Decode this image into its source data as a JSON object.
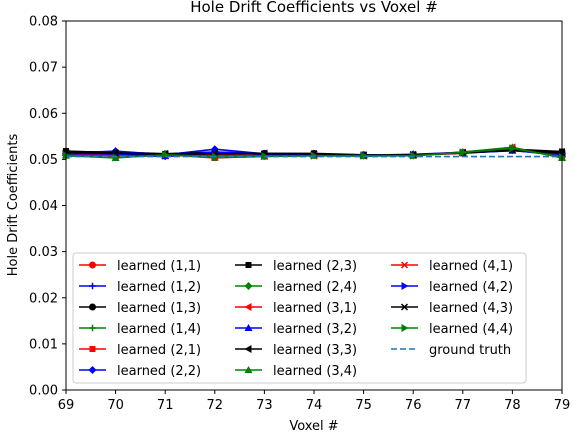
{
  "chart_data": {
    "type": "line",
    "title": "Hole Drift Coefficients vs Voxel #",
    "xlabel": "Voxel #",
    "ylabel": "Hole Drift Coefficients",
    "xlim": [
      69,
      79
    ],
    "ylim": [
      0.0,
      0.08
    ],
    "x_ticks": [
      "69",
      "70",
      "71",
      "72",
      "73",
      "74",
      "75",
      "76",
      "77",
      "78",
      "79"
    ],
    "y_ticks": [
      "0.00",
      "0.01",
      "0.02",
      "0.03",
      "0.04",
      "0.05",
      "0.06",
      "0.07",
      "0.08"
    ],
    "grid": false,
    "legend_position": "lower left",
    "legend_columns": 3,
    "x": [
      69,
      70,
      71,
      72,
      73,
      74,
      75,
      76,
      77,
      78,
      79
    ],
    "series": [
      {
        "name": "learned (1,1)",
        "color": "#ff0000",
        "marker": "circle",
        "line": "solid",
        "values": [
          0.051,
          0.0507,
          0.0508,
          0.0509,
          0.0508,
          0.0509,
          0.0508,
          0.0509,
          0.0513,
          0.052,
          0.0508
        ]
      },
      {
        "name": "learned (1,2)",
        "color": "#0000ff",
        "marker": "plus",
        "line": "solid",
        "values": [
          0.0512,
          0.0511,
          0.0506,
          0.0513,
          0.0512,
          0.051,
          0.0509,
          0.051,
          0.0514,
          0.0519,
          0.051
        ]
      },
      {
        "name": "learned (1,3)",
        "color": "#000000",
        "marker": "circle",
        "line": "solid",
        "values": [
          0.0517,
          0.0516,
          0.0512,
          0.0516,
          0.0513,
          0.0513,
          0.051,
          0.051,
          0.0514,
          0.0521,
          0.0515
        ]
      },
      {
        "name": "learned (1,4)",
        "color": "#008000",
        "marker": "plus",
        "line": "solid",
        "values": [
          0.0509,
          0.0505,
          0.051,
          0.0507,
          0.0508,
          0.0509,
          0.0509,
          0.0509,
          0.0514,
          0.0521,
          0.0507
        ]
      },
      {
        "name": "learned (2,1)",
        "color": "#ff0000",
        "marker": "square",
        "line": "solid",
        "values": [
          0.051,
          0.0504,
          0.051,
          0.0503,
          0.0507,
          0.0509,
          0.0508,
          0.0509,
          0.0516,
          0.0525,
          0.0505
        ]
      },
      {
        "name": "learned (2,2)",
        "color": "#0000ff",
        "marker": "diamond",
        "line": "solid",
        "values": [
          0.0513,
          0.0518,
          0.051,
          0.0522,
          0.0512,
          0.0511,
          0.0509,
          0.0511,
          0.0515,
          0.052,
          0.0512
        ]
      },
      {
        "name": "learned (2,3)",
        "color": "#000000",
        "marker": "square",
        "line": "solid",
        "values": [
          0.0518,
          0.0514,
          0.0511,
          0.0513,
          0.0512,
          0.0512,
          0.0509,
          0.0509,
          0.0514,
          0.0522,
          0.0517
        ]
      },
      {
        "name": "learned (2,4)",
        "color": "#008000",
        "marker": "diamond",
        "line": "solid",
        "values": [
          0.0508,
          0.0505,
          0.051,
          0.0505,
          0.0507,
          0.0509,
          0.0508,
          0.0508,
          0.0515,
          0.0524,
          0.0506
        ]
      },
      {
        "name": "learned (3,1)",
        "color": "#ff0000",
        "marker": "triangle-left",
        "line": "solid",
        "values": [
          0.0511,
          0.0507,
          0.0509,
          0.0508,
          0.0508,
          0.0508,
          0.0508,
          0.0509,
          0.0515,
          0.0526,
          0.0504
        ]
      },
      {
        "name": "learned (3,2)",
        "color": "#0000ff",
        "marker": "triangle-up",
        "line": "solid",
        "values": [
          0.0514,
          0.0512,
          0.0507,
          0.0516,
          0.0511,
          0.0511,
          0.0509,
          0.051,
          0.0514,
          0.0519,
          0.0511
        ]
      },
      {
        "name": "learned (3,3)",
        "color": "#000000",
        "marker": "triangle-left",
        "line": "solid",
        "values": [
          0.0516,
          0.0513,
          0.0512,
          0.0514,
          0.0513,
          0.0512,
          0.0509,
          0.051,
          0.0514,
          0.0521,
          0.0516
        ]
      },
      {
        "name": "learned (3,4)",
        "color": "#008000",
        "marker": "triangle-up",
        "line": "solid",
        "values": [
          0.0508,
          0.0503,
          0.0511,
          0.0504,
          0.0506,
          0.0508,
          0.0507,
          0.0508,
          0.0516,
          0.0526,
          0.0503
        ]
      },
      {
        "name": "learned (4,1)",
        "color": "#ff0000",
        "marker": "x",
        "line": "solid",
        "values": [
          0.051,
          0.0508,
          0.0509,
          0.0507,
          0.0508,
          0.0509,
          0.0508,
          0.0509,
          0.0514,
          0.0523,
          0.0506
        ]
      },
      {
        "name": "learned (4,2)",
        "color": "#0000ff",
        "marker": "triangle-right",
        "line": "solid",
        "values": [
          0.0512,
          0.0512,
          0.0508,
          0.0515,
          0.0511,
          0.0511,
          0.0509,
          0.051,
          0.0515,
          0.052,
          0.0511
        ]
      },
      {
        "name": "learned (4,3)",
        "color": "#000000",
        "marker": "x",
        "line": "solid",
        "values": [
          0.0515,
          0.0513,
          0.0511,
          0.0512,
          0.0512,
          0.0512,
          0.0509,
          0.051,
          0.0514,
          0.052,
          0.0514
        ]
      },
      {
        "name": "learned (4,4)",
        "color": "#008000",
        "marker": "triangle-right",
        "line": "solid",
        "values": [
          0.0509,
          0.0504,
          0.051,
          0.0506,
          0.0507,
          0.0508,
          0.0508,
          0.0508,
          0.0515,
          0.0524,
          0.0505
        ]
      },
      {
        "name": "ground truth",
        "color": "#1f77b4",
        "marker": "none",
        "line": "dashed",
        "values": [
          0.0506,
          0.0506,
          0.0506,
          0.0506,
          0.0506,
          0.0506,
          0.0506,
          0.0506,
          0.0506,
          0.0506,
          0.0506
        ]
      }
    ]
  }
}
